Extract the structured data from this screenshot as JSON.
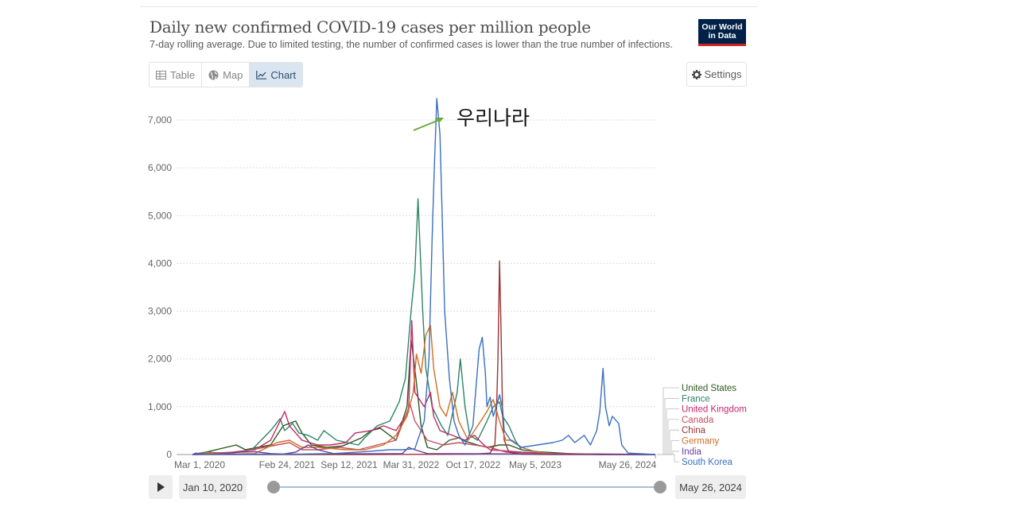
{
  "header": {
    "title": "Daily new confirmed COVID-19 cases per million people",
    "subtitle": "7-day rolling average. Due to limited testing, the number of confirmed cases is lower than the true number of infections.",
    "logo_line1": "Our World",
    "logo_line2": "in Data"
  },
  "tabs": [
    {
      "label": "Table",
      "icon": "table-icon"
    },
    {
      "label": "Map",
      "icon": "globe-icon"
    },
    {
      "label": "Chart",
      "icon": "line-chart-icon",
      "active": true
    }
  ],
  "settings_label": "Settings",
  "annotation": "우리나라",
  "timeline": {
    "start": "Jan 10, 2020",
    "end": "May 26, 2024"
  },
  "colors": {
    "accent": "#2c4f72",
    "logo_bg": "#002147",
    "logo_bar": "#ce261e",
    "arrow": "#6aaa3a"
  },
  "chart_data": {
    "type": "line",
    "title": "Daily new confirmed COVID-19 cases per million people",
    "ylim": [
      0,
      7500
    ],
    "yticks": [
      0,
      1000,
      2000,
      3000,
      4000,
      5000,
      6000,
      7000
    ],
    "ytick_labels": [
      "0",
      "1,000",
      "2,000",
      "3,000",
      "4,000",
      "5,000",
      "6,000",
      "7,000"
    ],
    "xlim": [
      0,
      1527
    ],
    "xticks": [
      {
        "day": 51,
        "label": "Mar 1, 2020"
      },
      {
        "day": 411,
        "label": "Feb 24, 2021"
      },
      {
        "day": 611,
        "label": "Sep 12, 2021"
      },
      {
        "day": 811,
        "label": "Mar 31, 2022"
      },
      {
        "day": 1011,
        "label": "Oct 17, 2022"
      },
      {
        "day": 1211,
        "label": "May 5, 2023"
      },
      {
        "day": 1597,
        "label": "May 26, 2024"
      }
    ],
    "series": [
      {
        "name": "United States",
        "color": "#2d5a1e",
        "points": [
          [
            51,
            0
          ],
          [
            100,
            60
          ],
          [
            190,
            200
          ],
          [
            220,
            100
          ],
          [
            300,
            200
          ],
          [
            340,
            600
          ],
          [
            380,
            700
          ],
          [
            400,
            450
          ],
          [
            430,
            200
          ],
          [
            480,
            150
          ],
          [
            530,
            180
          ],
          [
            590,
            350
          ],
          [
            620,
            500
          ],
          [
            650,
            550
          ],
          [
            680,
            400
          ],
          [
            700,
            300
          ],
          [
            735,
            1000
          ],
          [
            748,
            2400
          ],
          [
            760,
            1800
          ],
          [
            780,
            600
          ],
          [
            800,
            150
          ],
          [
            830,
            100
          ],
          [
            870,
            300
          ],
          [
            900,
            350
          ],
          [
            920,
            280
          ],
          [
            960,
            200
          ],
          [
            990,
            150
          ],
          [
            1030,
            200
          ],
          [
            1060,
            200
          ],
          [
            1100,
            100
          ],
          [
            1150,
            60
          ],
          [
            1200,
            40
          ],
          [
            1250,
            20
          ],
          [
            1300,
            5
          ],
          [
            1350,
            0
          ],
          [
            1527,
            0
          ]
        ]
      },
      {
        "name": "France",
        "color": "#2c8465",
        "points": [
          [
            51,
            0
          ],
          [
            100,
            50
          ],
          [
            150,
            20
          ],
          [
            240,
            100
          ],
          [
            300,
            500
          ],
          [
            330,
            750
          ],
          [
            345,
            500
          ],
          [
            370,
            650
          ],
          [
            390,
            450
          ],
          [
            420,
            400
          ],
          [
            450,
            300
          ],
          [
            470,
            500
          ],
          [
            510,
            300
          ],
          [
            580,
            200
          ],
          [
            600,
            350
          ],
          [
            640,
            600
          ],
          [
            680,
            700
          ],
          [
            710,
            1100
          ],
          [
            730,
            1600
          ],
          [
            748,
            3000
          ],
          [
            760,
            3800
          ],
          [
            770,
            5350
          ],
          [
            785,
            3000
          ],
          [
            795,
            1800
          ],
          [
            815,
            1000
          ],
          [
            845,
            600
          ],
          [
            865,
            400
          ],
          [
            895,
            1300
          ],
          [
            905,
            2000
          ],
          [
            920,
            1000
          ],
          [
            935,
            400
          ],
          [
            960,
            300
          ],
          [
            990,
            700
          ],
          [
            1010,
            1000
          ],
          [
            1030,
            1100
          ],
          [
            1040,
            800
          ],
          [
            1060,
            600
          ],
          [
            1080,
            300
          ],
          [
            1100,
            100
          ],
          [
            1200,
            20
          ],
          [
            1300,
            5
          ],
          [
            1527,
            0
          ]
        ]
      },
      {
        "name": "United Kingdom",
        "color": "#c4286b",
        "points": [
          [
            51,
            0
          ],
          [
            100,
            40
          ],
          [
            150,
            30
          ],
          [
            250,
            100
          ],
          [
            300,
            300
          ],
          [
            330,
            700
          ],
          [
            345,
            900
          ],
          [
            360,
            600
          ],
          [
            400,
            300
          ],
          [
            450,
            200
          ],
          [
            490,
            200
          ],
          [
            540,
            250
          ],
          [
            570,
            450
          ],
          [
            620,
            500
          ],
          [
            660,
            600
          ],
          [
            700,
            500
          ],
          [
            740,
            900
          ],
          [
            750,
            2800
          ],
          [
            760,
            1300
          ],
          [
            790,
            1000
          ],
          [
            810,
            1300
          ],
          [
            820,
            800
          ],
          [
            840,
            500
          ],
          [
            880,
            400
          ],
          [
            920,
            300
          ],
          [
            950,
            400
          ],
          [
            980,
            200
          ],
          [
            1000,
            100
          ],
          [
            1100,
            50
          ],
          [
            1200,
            20
          ],
          [
            1527,
            0
          ]
        ]
      },
      {
        "name": "Canada",
        "color": "#c15065",
        "points": [
          [
            51,
            0
          ],
          [
            100,
            30
          ],
          [
            200,
            50
          ],
          [
            320,
            200
          ],
          [
            360,
            250
          ],
          [
            400,
            100
          ],
          [
            450,
            100
          ],
          [
            520,
            150
          ],
          [
            580,
            100
          ],
          [
            640,
            200
          ],
          [
            700,
            300
          ],
          [
            745,
            1050
          ],
          [
            760,
            700
          ],
          [
            800,
            300
          ],
          [
            850,
            200
          ],
          [
            900,
            250
          ],
          [
            950,
            200
          ],
          [
            1000,
            150
          ],
          [
            1050,
            50
          ],
          [
            1200,
            10
          ],
          [
            1527,
            0
          ]
        ]
      },
      {
        "name": "China",
        "color": "#9a3334",
        "points": [
          [
            51,
            0
          ],
          [
            300,
            0
          ],
          [
            600,
            0
          ],
          [
            850,
            5
          ],
          [
            900,
            10
          ],
          [
            950,
            10
          ],
          [
            1000,
            30
          ],
          [
            1015,
            200
          ],
          [
            1020,
            800
          ],
          [
            1025,
            2000
          ],
          [
            1030,
            4050
          ],
          [
            1035,
            2600
          ],
          [
            1040,
            800
          ],
          [
            1045,
            300
          ],
          [
            1060,
            50
          ],
          [
            1100,
            5
          ],
          [
            1200,
            0
          ],
          [
            1527,
            0
          ]
        ]
      },
      {
        "name": "Germany",
        "color": "#d26e21",
        "points": [
          [
            51,
            0
          ],
          [
            100,
            40
          ],
          [
            150,
            10
          ],
          [
            250,
            20
          ],
          [
            320,
            250
          ],
          [
            360,
            300
          ],
          [
            400,
            150
          ],
          [
            450,
            150
          ],
          [
            540,
            100
          ],
          [
            600,
            100
          ],
          [
            660,
            200
          ],
          [
            700,
            400
          ],
          [
            735,
            800
          ],
          [
            755,
            1300
          ],
          [
            765,
            2100
          ],
          [
            780,
            1700
          ],
          [
            795,
            2500
          ],
          [
            810,
            2700
          ],
          [
            820,
            1800
          ],
          [
            840,
            1000
          ],
          [
            860,
            800
          ],
          [
            880,
            1300
          ],
          [
            900,
            700
          ],
          [
            930,
            300
          ],
          [
            960,
            600
          ],
          [
            990,
            900
          ],
          [
            1010,
            1150
          ],
          [
            1030,
            700
          ],
          [
            1050,
            300
          ],
          [
            1070,
            300
          ],
          [
            1100,
            150
          ],
          [
            1150,
            50
          ],
          [
            1200,
            20
          ],
          [
            1527,
            0
          ]
        ]
      },
      {
        "name": "India",
        "color": "#6b3fa0",
        "points": [
          [
            51,
            0
          ],
          [
            150,
            15
          ],
          [
            200,
            50
          ],
          [
            250,
            60
          ],
          [
            300,
            20
          ],
          [
            340,
            10
          ],
          [
            380,
            50
          ],
          [
            420,
            200
          ],
          [
            450,
            100
          ],
          [
            500,
            20
          ],
          [
            600,
            15
          ],
          [
            720,
            20
          ],
          [
            740,
            150
          ],
          [
            760,
            100
          ],
          [
            800,
            20
          ],
          [
            1527,
            0
          ]
        ]
      },
      {
        "name": "South Korea",
        "color": "#3b6fc0",
        "points": [
          [
            51,
            0
          ],
          [
            60,
            30
          ],
          [
            100,
            5
          ],
          [
            200,
            5
          ],
          [
            300,
            10
          ],
          [
            400,
            10
          ],
          [
            500,
            20
          ],
          [
            600,
            60
          ],
          [
            680,
            100
          ],
          [
            720,
            100
          ],
          [
            760,
            120
          ],
          [
            790,
            700
          ],
          [
            805,
            2000
          ],
          [
            815,
            4500
          ],
          [
            822,
            6000
          ],
          [
            830,
            7450
          ],
          [
            840,
            6700
          ],
          [
            848,
            4800
          ],
          [
            855,
            3000
          ],
          [
            870,
            1600
          ],
          [
            885,
            700
          ],
          [
            900,
            400
          ],
          [
            920,
            200
          ],
          [
            945,
            600
          ],
          [
            955,
            1400
          ],
          [
            965,
            2200
          ],
          [
            975,
            2450
          ],
          [
            985,
            1700
          ],
          [
            990,
            1000
          ],
          [
            1000,
            1200
          ],
          [
            1010,
            800
          ],
          [
            1020,
            1000
          ],
          [
            1030,
            1250
          ],
          [
            1040,
            950
          ],
          [
            1045,
            500
          ],
          [
            1065,
            300
          ],
          [
            1100,
            150
          ],
          [
            1150,
            200
          ],
          [
            1200,
            250
          ],
          [
            1230,
            300
          ],
          [
            1250,
            400
          ],
          [
            1270,
            250
          ],
          [
            1300,
            400
          ],
          [
            1320,
            200
          ],
          [
            1340,
            500
          ],
          [
            1350,
            900
          ],
          [
            1360,
            1800
          ],
          [
            1368,
            1000
          ],
          [
            1380,
            600
          ],
          [
            1390,
            800
          ],
          [
            1410,
            650
          ],
          [
            1420,
            200
          ],
          [
            1440,
            30
          ],
          [
            1500,
            10
          ],
          [
            1527,
            0
          ]
        ]
      }
    ]
  }
}
